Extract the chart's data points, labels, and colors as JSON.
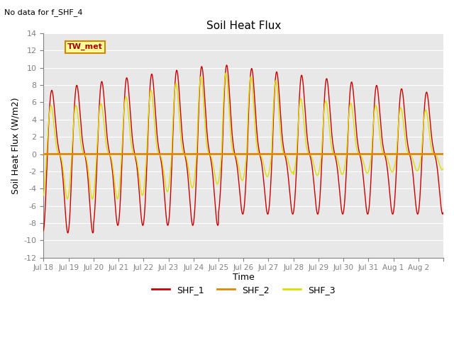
{
  "title": "Soil Heat Flux",
  "subtitle": "No data for f_SHF_4",
  "ylabel": "Soil Heat Flux (W/m2)",
  "xlabel": "Time",
  "annotation": "TW_met",
  "ylim": [
    -12,
    14
  ],
  "background_color": "#e8e8e8",
  "shf1_color": "#cc0000",
  "shf2_color": "#dd8800",
  "shf3_color": "#dddd00",
  "legend_entries": [
    "SHF_1",
    "SHF_2",
    "SHF_3"
  ],
  "x_tick_labels": [
    "Jul 18",
    "Jul 19",
    "Jul 20",
    "Jul 21",
    "Jul 22",
    "Jul 23",
    "Jul 24",
    "Jul 25",
    "Jul 26",
    "Jul 27",
    "Jul 28",
    "Jul 29",
    "Jul 30",
    "Jul 31",
    "Aug 1",
    "Aug 2"
  ],
  "n_days": 16
}
